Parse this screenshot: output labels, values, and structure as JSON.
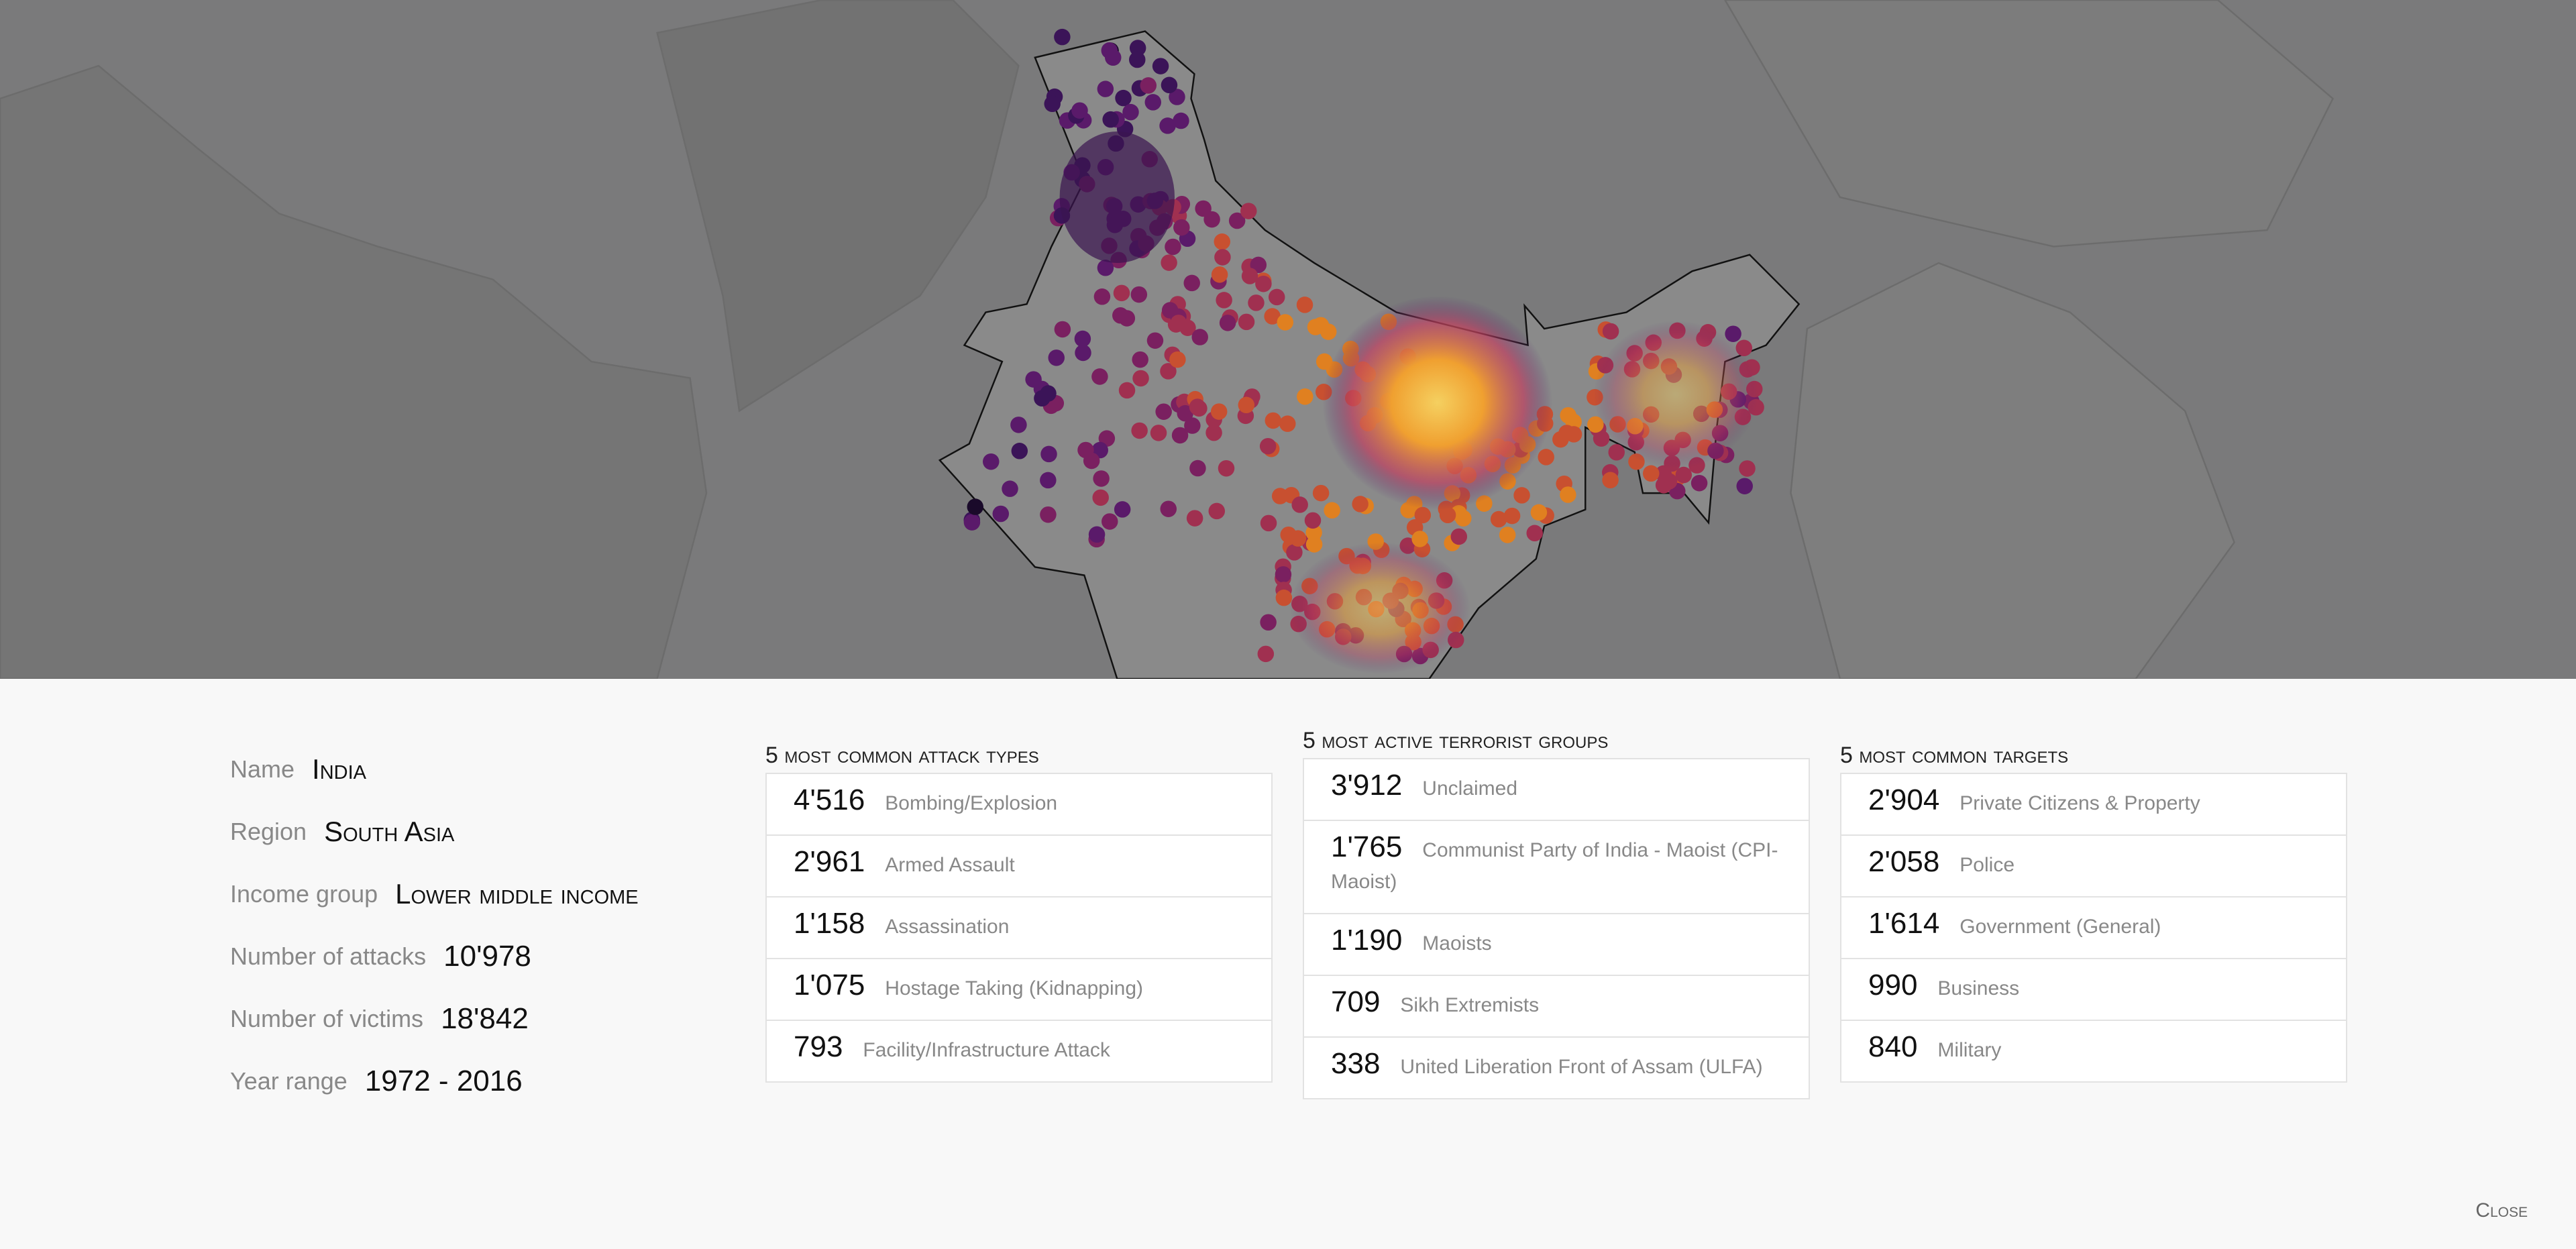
{
  "details": {
    "rows": [
      {
        "label": "Name",
        "value": "India",
        "caps": true
      },
      {
        "label": "Region",
        "value": "South Asia",
        "caps": true
      },
      {
        "label": "Income group",
        "value": "Lower middle income",
        "caps": true
      },
      {
        "label": "Number of attacks",
        "value": "10'978",
        "caps": false
      },
      {
        "label": "Number of victims",
        "value": "18'842",
        "caps": false
      },
      {
        "label": "Year range",
        "value": "1972 - 2016",
        "caps": false
      }
    ]
  },
  "lists": [
    {
      "title": "5 most common attack types",
      "items": [
        {
          "count": "4'516",
          "label": "Bombing/Explosion"
        },
        {
          "count": "2'961",
          "label": "Armed Assault"
        },
        {
          "count": "1'158",
          "label": "Assassination"
        },
        {
          "count": "1'075",
          "label": "Hostage Taking (Kidnapping)"
        },
        {
          "count": "793",
          "label": "Facility/Infrastructure Attack"
        }
      ]
    },
    {
      "title": "5 most active terrorist groups",
      "items": [
        {
          "count": "3'912",
          "label": "Unclaimed"
        },
        {
          "count": "1'765",
          "label": "Communist Party of India - Maoist (CPI-Maoist)"
        },
        {
          "count": "1'190",
          "label": "Maoists"
        },
        {
          "count": "709",
          "label": "Sikh Extremists"
        },
        {
          "count": "338",
          "label": "United Liberation Front of Assam (ULFA)"
        }
      ]
    },
    {
      "title": "5 most common targets",
      "items": [
        {
          "count": "2'904",
          "label": "Private Citizens & Property"
        },
        {
          "count": "2'058",
          "label": "Police"
        },
        {
          "count": "1'614",
          "label": "Government (General)"
        },
        {
          "count": "990",
          "label": "Business"
        },
        {
          "count": "840",
          "label": "Military"
        }
      ]
    }
  ],
  "close": "Close"
}
